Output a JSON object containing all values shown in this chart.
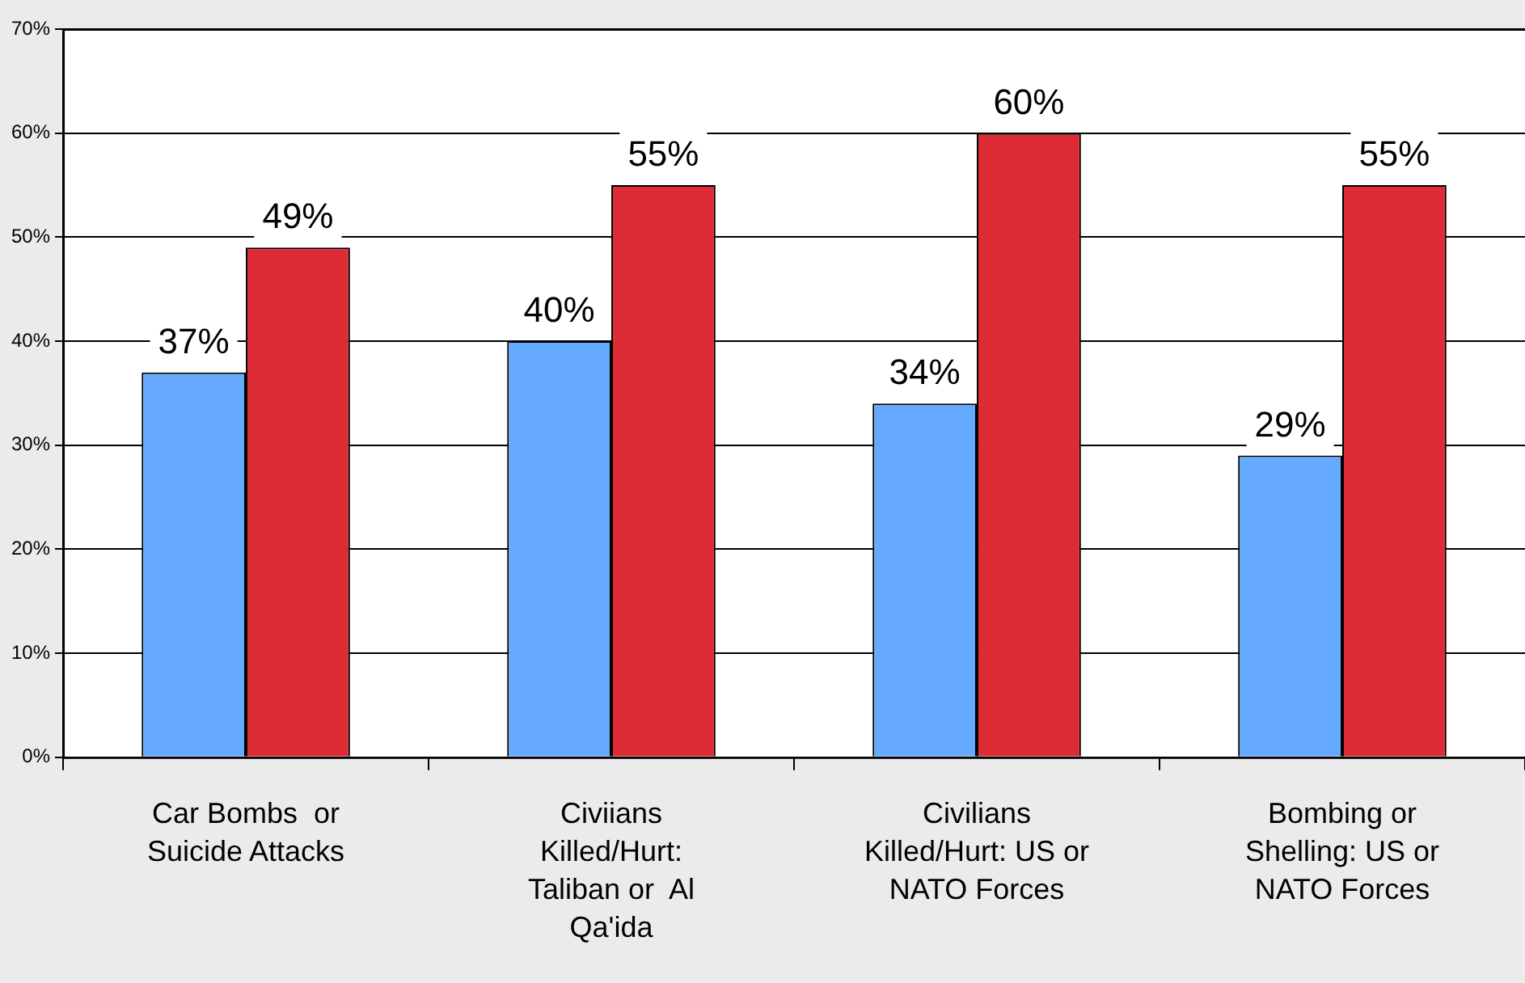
{
  "chart_data": {
    "type": "bar",
    "categories": [
      "Car Bombs  or\nSuicide Attacks",
      "Civiians\nKilled/Hurt:\nTaliban or  Al\nQa'ida",
      "Civilians\nKilled/Hurt: US or\nNATO Forces",
      "Bombing or\nShelling: US or\nNATO Forces"
    ],
    "series": [
      {
        "color": "#66aaff",
        "values": [
          37,
          40,
          34,
          29
        ],
        "value_labels": [
          "37%",
          "40%",
          "34%",
          "29%"
        ]
      },
      {
        "color": "#dd2c35",
        "values": [
          49,
          55,
          60,
          55
        ],
        "value_labels": [
          "49%",
          "55%",
          "60%",
          "55%"
        ]
      }
    ],
    "ylim": [
      0,
      70
    ],
    "yticks": [
      {
        "value": 0,
        "label": "0%"
      },
      {
        "value": 10,
        "label": "10%"
      },
      {
        "value": 20,
        "label": "20%"
      },
      {
        "value": 30,
        "label": "30%"
      },
      {
        "value": 40,
        "label": "40%"
      },
      {
        "value": 50,
        "label": "50%"
      },
      {
        "value": 60,
        "label": "60%"
      },
      {
        "value": 70,
        "label": "70%"
      }
    ],
    "grid": "y",
    "legend": false
  }
}
